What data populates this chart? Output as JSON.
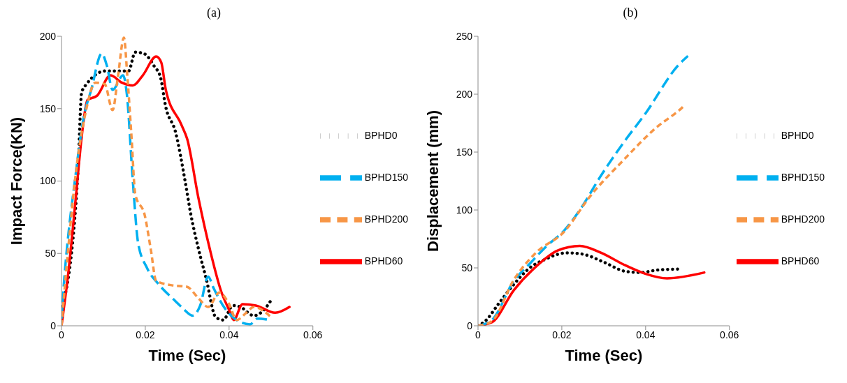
{
  "chart_data": [
    {
      "type": "line",
      "title": "(a)",
      "xlabel": "Time (Sec)",
      "ylabel": "Impact Force(KN)",
      "xlim": [
        0,
        0.06
      ],
      "xticks": [
        0,
        0.02,
        0.04,
        0.06
      ],
      "ylim": [
        0,
        200
      ],
      "yticks": [
        0,
        50,
        100,
        150,
        200
      ],
      "grid": false,
      "legend": "right",
      "marker": "none",
      "series": [
        {
          "name": "BPHD0",
          "color": "#000000",
          "line_style": "dotted",
          "x": [
            0,
            0.0039,
            0.0048,
            0.006,
            0.0105,
            0.016,
            0.0176,
            0.0197,
            0.0222,
            0.0236,
            0.0249,
            0.0272,
            0.0295,
            0.0308,
            0.0327,
            0.0345,
            0.0368,
            0.0386,
            0.0409,
            0.0427,
            0.0459,
            0.0489,
            0.0503
          ],
          "values": [
            10,
            105,
            161,
            167,
            176,
            176,
            189,
            188,
            179,
            172,
            151,
            134,
            100,
            78,
            53,
            33,
            6,
            4,
            14,
            13,
            7,
            13,
            19
          ]
        },
        {
          "name": "BPHD60",
          "color": "#ff0000",
          "line_style": "solid",
          "x": [
            0,
            0.0016,
            0.0034,
            0.0048,
            0.0062,
            0.0085,
            0.0117,
            0.0144,
            0.017,
            0.0194,
            0.0226,
            0.0238,
            0.0249,
            0.0286,
            0.03,
            0.0327,
            0.0354,
            0.0382,
            0.04,
            0.0411,
            0.0432,
            0.0464,
            0.051,
            0.0544
          ],
          "values": [
            0,
            36,
            88,
            130,
            156,
            159,
            173,
            168,
            166,
            173,
            186,
            182,
            163,
            139,
            129,
            88,
            53,
            23,
            11,
            4,
            15,
            14,
            9,
            13
          ]
        },
        {
          "name": "BPHD150",
          "color": "#00b0f0",
          "line_style": "dashed",
          "x": [
            0,
            0.0003,
            0.0034,
            0.0053,
            0.0071,
            0.0096,
            0.0108,
            0.0122,
            0.0147,
            0.0156,
            0.017,
            0.0183,
            0.0204,
            0.0231,
            0.0272,
            0.029,
            0.0313,
            0.0331,
            0.035,
            0.0363,
            0.039,
            0.0418,
            0.045,
            0.0468,
            0.0496
          ],
          "values": [
            5,
            18,
            105,
            144,
            163,
            188,
            180,
            163,
            173,
            160,
            101,
            57,
            40,
            29,
            17,
            12,
            7,
            14,
            34,
            26,
            12,
            4,
            1,
            5,
            4
          ]
        },
        {
          "name": "BPHD200",
          "color": "#f79646",
          "line_style": "dashed",
          "x": [
            0,
            0.0016,
            0.0034,
            0.0058,
            0.0081,
            0.0103,
            0.0122,
            0.0135,
            0.0149,
            0.0157,
            0.0167,
            0.0176,
            0.0199,
            0.0213,
            0.0226,
            0.0263,
            0.0299,
            0.0327,
            0.035,
            0.0377,
            0.04,
            0.0418,
            0.0441,
            0.0459,
            0.05
          ],
          "values": [
            0,
            53,
            105,
            148,
            168,
            167,
            149,
            173,
            199,
            173,
            131,
            91,
            76,
            53,
            31,
            28,
            27,
            19,
            13,
            23,
            15,
            4,
            9,
            13,
            6
          ]
        }
      ]
    },
    {
      "type": "line",
      "title": "(b)",
      "xlabel": "Time (Sec)",
      "ylabel": "Displacement (mm)",
      "xlim": [
        0,
        0.06
      ],
      "xticks": [
        0,
        0.02,
        0.04,
        0.06
      ],
      "ylim": [
        0,
        250
      ],
      "yticks": [
        0,
        50,
        100,
        150,
        200,
        250
      ],
      "grid": false,
      "legend": "right",
      "marker": "none",
      "series": [
        {
          "name": "BPHD0",
          "color": "#000000",
          "line_style": "dotted",
          "x": [
            0,
            0.0017,
            0.0049,
            0.0086,
            0.0127,
            0.0158,
            0.0211,
            0.0248,
            0.03,
            0.0352,
            0.0389,
            0.0425,
            0.0483
          ],
          "values": [
            0,
            4,
            19,
            36,
            51,
            57,
            63,
            62,
            55,
            47,
            46,
            48,
            49
          ]
        },
        {
          "name": "BPHD60",
          "color": "#ff0000",
          "line_style": "solid",
          "x": [
            0,
            0.0033,
            0.0086,
            0.0138,
            0.019,
            0.0243,
            0.0294,
            0.0347,
            0.0399,
            0.0451,
            0.054
          ],
          "values": [
            0,
            3,
            31,
            51,
            65,
            69,
            63,
            53,
            45,
            41,
            46
          ]
        },
        {
          "name": "BPHD150",
          "color": "#00b0f0",
          "line_style": "dashed",
          "x": [
            0,
            0.0033,
            0.0086,
            0.0122,
            0.0164,
            0.0205,
            0.0243,
            0.0294,
            0.0347,
            0.0399,
            0.0478,
            0.0501
          ],
          "values": [
            0,
            5,
            39,
            53,
            69,
            82,
            100,
            130,
            158,
            183,
            225,
            233
          ]
        },
        {
          "name": "BPHD200",
          "color": "#f79646",
          "line_style": "dashed",
          "x": [
            0,
            0.0033,
            0.0086,
            0.0138,
            0.0205,
            0.0268,
            0.0347,
            0.0425,
            0.0483,
            0.0495
          ],
          "values": [
            0,
            4,
            40,
            63,
            81,
            112,
            143,
            171,
            187,
            191
          ]
        }
      ]
    }
  ]
}
